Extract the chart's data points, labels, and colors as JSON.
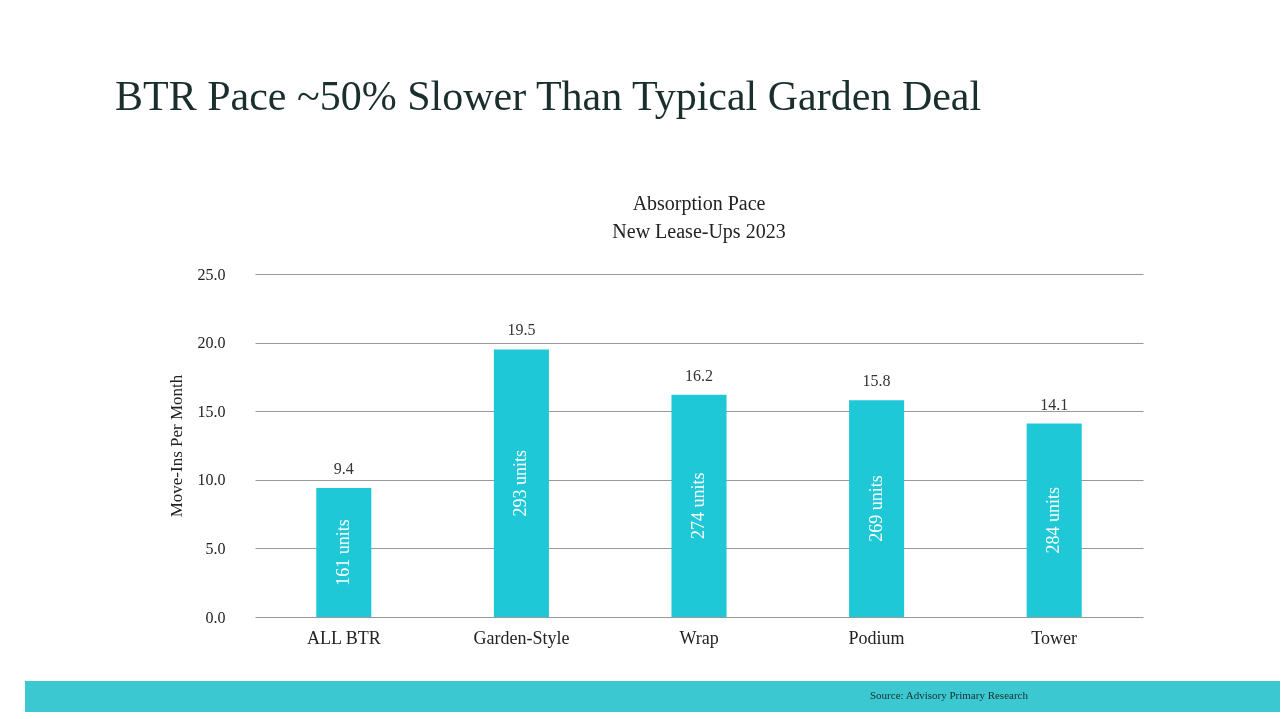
{
  "chart_data": {
    "type": "bar",
    "title": "BTR Pace ~50% Slower Than Typical Garden Deal",
    "subtitle": "Absorption Pace\nNew Lease-Ups 2023",
    "ylabel": "Move-Ins Per Month",
    "categories": [
      "ALL BTR",
      "Garden-Style",
      "Wrap",
      "Podium",
      "Tower"
    ],
    "values": [
      9.4,
      19.5,
      16.2,
      15.8,
      14.1
    ],
    "color": "#1ec8d6",
    "ylim": [
      0,
      25
    ],
    "yticks": [
      {
        "value": 0,
        "label": "0.0"
      },
      {
        "value": 5,
        "label": "5.0"
      },
      {
        "value": 10,
        "label": "10.0"
      },
      {
        "value": 15,
        "label": "15.0"
      },
      {
        "value": 20,
        "label": "20.0"
      },
      {
        "value": 25,
        "label": "25.0"
      }
    ],
    "grid": "y",
    "data_labels": true,
    "annotations": [
      "161 units",
      "293 units",
      "274 units",
      "269 units",
      "284 units",
      "Source: Advisory Primary Research"
    ]
  }
}
